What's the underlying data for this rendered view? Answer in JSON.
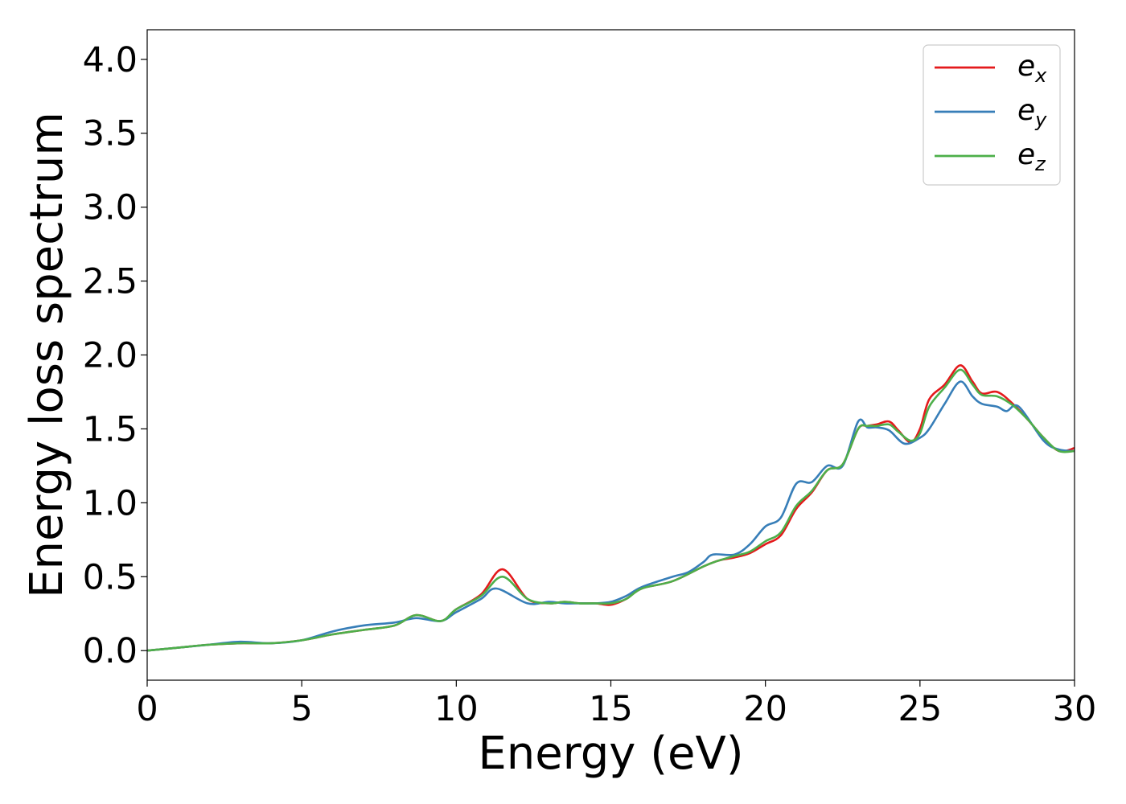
{
  "chart_data": {
    "type": "line",
    "title": "",
    "xlabel": "Energy (eV)",
    "ylabel": "Energy loss spectrum",
    "xlim": [
      0,
      30
    ],
    "ylim": [
      -0.2,
      4.2
    ],
    "xticks": [
      0,
      5,
      10,
      15,
      20,
      25,
      30
    ],
    "xtick_labels": [
      "0",
      "5",
      "10",
      "15",
      "20",
      "25",
      "30"
    ],
    "yticks": [
      0.0,
      0.5,
      1.0,
      1.5,
      2.0,
      2.5,
      3.0,
      3.5,
      4.0
    ],
    "ytick_labels": [
      "0.0",
      "0.5",
      "1.0",
      "1.5",
      "2.0",
      "2.5",
      "3.0",
      "3.5",
      "4.0"
    ],
    "grid": false,
    "legend_position": "top-right",
    "series": [
      {
        "name": "e_x",
        "label_base": "e",
        "label_sub": "x",
        "color": "#e41a1c",
        "x": [
          0,
          1,
          2,
          3,
          4,
          5,
          6,
          7,
          8,
          8.7,
          9.5,
          10,
          10.8,
          11.5,
          12.3,
          13,
          13.5,
          14,
          14.5,
          15,
          15.5,
          16,
          17,
          18,
          18.5,
          19,
          19.5,
          20,
          20.5,
          21,
          21.5,
          22,
          22.5,
          23,
          23.3,
          23.6,
          24,
          24.3,
          24.7,
          25,
          25.3,
          25.8,
          26.3,
          26.7,
          27,
          27.5,
          28,
          28.5,
          29,
          29.5,
          30
        ],
        "y": [
          0.0,
          0.02,
          0.04,
          0.05,
          0.05,
          0.07,
          0.11,
          0.14,
          0.17,
          0.24,
          0.2,
          0.28,
          0.38,
          0.55,
          0.35,
          0.32,
          0.33,
          0.32,
          0.32,
          0.31,
          0.35,
          0.42,
          0.47,
          0.57,
          0.61,
          0.63,
          0.66,
          0.72,
          0.78,
          0.96,
          1.07,
          1.22,
          1.26,
          1.5,
          1.52,
          1.53,
          1.55,
          1.49,
          1.41,
          1.5,
          1.7,
          1.8,
          1.93,
          1.82,
          1.74,
          1.75,
          1.67,
          1.56,
          1.44,
          1.35,
          1.37
        ]
      },
      {
        "name": "e_y",
        "label_base": "e",
        "label_sub": "y",
        "color": "#377eb8",
        "x": [
          0,
          1,
          2,
          3,
          4,
          5,
          6,
          7,
          8,
          8.7,
          9.5,
          10,
          10.8,
          11.3,
          12.3,
          13,
          13.5,
          14,
          14.5,
          15,
          15.5,
          16,
          17,
          17.5,
          18,
          18.3,
          19,
          19.5,
          20,
          20.5,
          21,
          21.5,
          22,
          22.5,
          23,
          23.3,
          23.6,
          24,
          24.5,
          25,
          25.3,
          25.8,
          26.3,
          26.7,
          27,
          27.5,
          27.8,
          28.2,
          29,
          29.5,
          30
        ],
        "y": [
          0.0,
          0.02,
          0.04,
          0.06,
          0.05,
          0.07,
          0.13,
          0.17,
          0.19,
          0.22,
          0.2,
          0.26,
          0.35,
          0.42,
          0.32,
          0.33,
          0.32,
          0.32,
          0.32,
          0.33,
          0.37,
          0.43,
          0.5,
          0.53,
          0.6,
          0.65,
          0.65,
          0.72,
          0.84,
          0.9,
          1.13,
          1.14,
          1.25,
          1.25,
          1.55,
          1.51,
          1.51,
          1.49,
          1.4,
          1.44,
          1.5,
          1.67,
          1.82,
          1.72,
          1.67,
          1.65,
          1.62,
          1.65,
          1.42,
          1.36,
          1.35
        ]
      },
      {
        "name": "e_z",
        "label_base": "e",
        "label_sub": "z",
        "color": "#4daf4a",
        "x": [
          0,
          1,
          2,
          3,
          4,
          5,
          6,
          7,
          8,
          8.7,
          9.5,
          10,
          10.8,
          11.5,
          12.3,
          13,
          13.5,
          14,
          14.5,
          15,
          15.5,
          16,
          17,
          18,
          18.5,
          19,
          19.5,
          20,
          20.5,
          21,
          21.5,
          22,
          22.5,
          23,
          23.3,
          23.6,
          24,
          24.3,
          24.7,
          25,
          25.3,
          25.8,
          26.3,
          26.7,
          27,
          27.5,
          28,
          28.5,
          29,
          29.5,
          30
        ],
        "y": [
          0.0,
          0.02,
          0.04,
          0.05,
          0.05,
          0.07,
          0.11,
          0.14,
          0.17,
          0.24,
          0.2,
          0.28,
          0.37,
          0.5,
          0.35,
          0.32,
          0.33,
          0.32,
          0.32,
          0.32,
          0.35,
          0.42,
          0.47,
          0.57,
          0.61,
          0.64,
          0.67,
          0.74,
          0.8,
          0.98,
          1.08,
          1.22,
          1.26,
          1.5,
          1.52,
          1.52,
          1.53,
          1.48,
          1.42,
          1.47,
          1.65,
          1.78,
          1.9,
          1.8,
          1.73,
          1.72,
          1.66,
          1.56,
          1.44,
          1.35,
          1.35
        ]
      }
    ]
  }
}
